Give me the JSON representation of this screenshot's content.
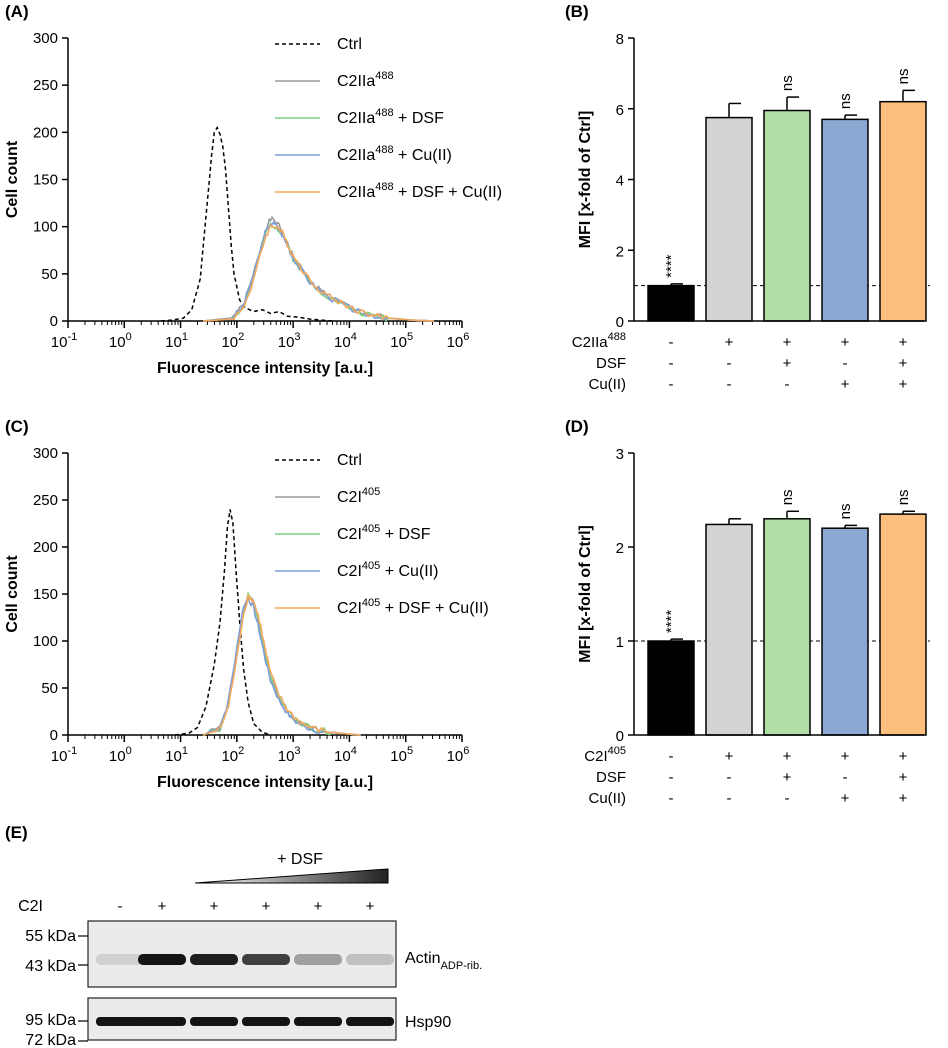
{
  "panels": {
    "A": "(A)",
    "B": "(B)",
    "C": "(C)",
    "D": "(D)",
    "E": "(E)"
  },
  "chart_data": [
    {
      "id": "A",
      "type": "line",
      "title": "",
      "xlabel": "Fluorescence intensity [a.u.]",
      "ylabel": "Cell count",
      "xscale": "log",
      "xlim_exp": [
        -1,
        6
      ],
      "ylim": [
        0,
        300
      ],
      "yticks": [
        "0",
        "50",
        "100",
        "150",
        "200",
        "250",
        "300"
      ],
      "xtick_base": "10",
      "xtick_exponents": [
        "-1",
        "0",
        "1",
        "2",
        "3",
        "4",
        "5",
        "6"
      ],
      "series": [
        {
          "key": "ctrl",
          "name": "Ctrl",
          "sup": "",
          "suffix": "",
          "color": "#000000",
          "dashed": true,
          "x": [
            0.65,
            0.85,
            1.05,
            1.2,
            1.35,
            1.45,
            1.55,
            1.6,
            1.65,
            1.7,
            1.75,
            1.8,
            1.85,
            1.9,
            1.95,
            2.05,
            2.15,
            2.3,
            2.45,
            2.6,
            2.75,
            2.9,
            3.1,
            3.3,
            3.5,
            3.7
          ],
          "y": [
            0,
            1,
            3,
            12,
            45,
            110,
            175,
            200,
            205,
            198,
            185,
            160,
            120,
            80,
            50,
            22,
            14,
            10,
            12,
            8,
            10,
            5,
            4,
            2,
            1,
            0
          ]
        },
        {
          "key": "c2",
          "name": "C2IIa",
          "sup": "488",
          "suffix": "",
          "color": "#999999",
          "dashed": false,
          "seed": 1,
          "x": [
            1.4,
            1.9,
            2.1,
            2.25,
            2.4,
            2.5,
            2.6,
            2.7,
            2.8,
            2.9,
            3.0,
            3.15,
            3.3,
            3.5,
            3.7,
            3.9,
            4.1,
            4.3,
            4.5,
            4.7,
            4.9,
            5.1,
            5.3,
            5.5
          ],
          "y": [
            0,
            3,
            15,
            40,
            72,
            95,
            108,
            105,
            95,
            82,
            68,
            55,
            42,
            32,
            24,
            18,
            12,
            8,
            5,
            3,
            2,
            1,
            0.5,
            0
          ]
        },
        {
          "key": "c2dsf",
          "name": "C2IIa",
          "sup": "488",
          "suffix": " + DSF",
          "color": "#7fd07f",
          "dashed": false,
          "seed": 2,
          "x": [
            1.4,
            1.9,
            2.1,
            2.25,
            2.4,
            2.5,
            2.6,
            2.7,
            2.8,
            2.9,
            3.0,
            3.15,
            3.3,
            3.5,
            3.7,
            3.9,
            4.1,
            4.3,
            4.5,
            4.7,
            4.9,
            5.1,
            5.3,
            5.5
          ],
          "y": [
            0,
            3,
            14,
            38,
            70,
            92,
            102,
            100,
            93,
            80,
            66,
            54,
            41,
            31,
            23,
            17,
            11,
            7,
            5,
            3,
            2,
            1,
            0.5,
            0
          ]
        },
        {
          "key": "c2cu",
          "name": "C2IIa",
          "sup": "488",
          "suffix": " + Cu(II)",
          "color": "#7b9fd8",
          "dashed": false,
          "seed": 3,
          "x": [
            1.4,
            1.9,
            2.1,
            2.25,
            2.4,
            2.5,
            2.6,
            2.7,
            2.8,
            2.9,
            3.0,
            3.15,
            3.3,
            3.5,
            3.7,
            3.9,
            4.1,
            4.3,
            4.5,
            4.7,
            4.9,
            5.1,
            5.3,
            5.5
          ],
          "y": [
            0,
            3,
            14,
            40,
            71,
            93,
            104,
            101,
            92,
            80,
            67,
            54,
            41,
            31,
            23,
            17,
            11,
            7,
            5,
            3,
            2,
            1,
            0.5,
            0
          ]
        },
        {
          "key": "c2dsfcu",
          "name": "C2IIa",
          "sup": "488",
          "suffix": " + DSF + Cu(II)",
          "color": "#f5a85a",
          "dashed": false,
          "seed": 4,
          "x": [
            1.4,
            1.9,
            2.1,
            2.25,
            2.4,
            2.5,
            2.6,
            2.7,
            2.8,
            2.9,
            3.0,
            3.15,
            3.3,
            3.5,
            3.7,
            3.9,
            4.1,
            4.3,
            4.5,
            4.7,
            4.9,
            5.1,
            5.3,
            5.5
          ],
          "y": [
            0,
            2,
            12,
            35,
            66,
            88,
            100,
            101,
            94,
            82,
            69,
            56,
            43,
            32,
            24,
            18,
            12,
            8,
            5,
            3,
            2,
            1,
            0.5,
            0
          ]
        }
      ]
    },
    {
      "id": "B",
      "type": "bar",
      "ylabel": "MFI [x-fold of Ctrl]",
      "ylim": [
        0,
        8
      ],
      "yticks": [
        "0",
        "2",
        "4",
        "6",
        "8"
      ],
      "refline": 1,
      "values": [
        1.0,
        5.75,
        5.95,
        5.7,
        6.2
      ],
      "errors": [
        0.05,
        0.4,
        0.38,
        0.12,
        0.32
      ],
      "colors": [
        "#000000",
        "#d3d3d3",
        "#b0e0a8",
        "#8aa8d2",
        "#fcbf7e"
      ],
      "significance": [
        "****",
        "",
        "ns",
        "ns",
        "ns"
      ],
      "conditions": [
        {
          "label": "C2IIa",
          "sup": "488",
          "marks": [
            "-",
            "+",
            "+",
            "+",
            "+"
          ]
        },
        {
          "label": "DSF",
          "sup": "",
          "marks": [
            "-",
            "-",
            "+",
            "-",
            "+"
          ]
        },
        {
          "label": "Cu(II)",
          "sup": "",
          "marks": [
            "-",
            "-",
            "-",
            "+",
            "+"
          ]
        }
      ]
    },
    {
      "id": "C",
      "type": "line",
      "xlabel": "Fluorescence intensity [a.u.]",
      "ylabel": "Cell count",
      "xscale": "log",
      "xlim_exp": [
        -1,
        6
      ],
      "ylim": [
        0,
        300
      ],
      "yticks": [
        "0",
        "50",
        "100",
        "150",
        "200",
        "250",
        "300"
      ],
      "xtick_base": "10",
      "xtick_exponents": [
        "-1",
        "0",
        "1",
        "2",
        "3",
        "4",
        "5",
        "6"
      ],
      "series": [
        {
          "key": "ctrl",
          "name": "Ctrl",
          "sup": "",
          "suffix": "",
          "color": "#000000",
          "dashed": true,
          "x": [
            0.9,
            1.15,
            1.3,
            1.45,
            1.6,
            1.7,
            1.78,
            1.83,
            1.88,
            1.93,
            1.98,
            2.05,
            2.12,
            2.2,
            2.3,
            2.45,
            2.6
          ],
          "y": [
            0,
            2,
            8,
            30,
            75,
            120,
            175,
            220,
            240,
            225,
            180,
            120,
            70,
            35,
            12,
            3,
            0
          ]
        },
        {
          "key": "c2",
          "name": "C2I",
          "sup": "405",
          "suffix": "",
          "color": "#999999",
          "dashed": false,
          "seed": 5,
          "x": [
            1.4,
            1.7,
            1.85,
            2.0,
            2.1,
            2.2,
            2.3,
            2.4,
            2.5,
            2.6,
            2.75,
            2.9,
            3.05,
            3.2,
            3.4,
            3.6,
            3.8,
            4.0,
            4.2
          ],
          "y": [
            0,
            8,
            35,
            90,
            130,
            150,
            140,
            115,
            85,
            60,
            38,
            24,
            15,
            10,
            6,
            4,
            2,
            1,
            0
          ]
        },
        {
          "key": "c2dsf",
          "name": "C2I",
          "sup": "405",
          "suffix": " + DSF",
          "color": "#7fd07f",
          "dashed": false,
          "seed": 6,
          "x": [
            1.4,
            1.7,
            1.85,
            2.0,
            2.1,
            2.2,
            2.3,
            2.4,
            2.5,
            2.6,
            2.75,
            2.9,
            3.05,
            3.2,
            3.4,
            3.6,
            3.8,
            4.0,
            4.2
          ],
          "y": [
            0,
            7,
            32,
            86,
            126,
            148,
            140,
            118,
            88,
            62,
            40,
            26,
            16,
            11,
            6,
            4,
            2,
            1,
            0
          ]
        },
        {
          "key": "c2cu",
          "name": "C2I",
          "sup": "405",
          "suffix": " + Cu(II)",
          "color": "#7b9fd8",
          "dashed": false,
          "seed": 7,
          "x": [
            1.4,
            1.7,
            1.85,
            2.0,
            2.1,
            2.2,
            2.3,
            2.4,
            2.5,
            2.6,
            2.75,
            2.9,
            3.05,
            3.2,
            3.4,
            3.6,
            3.8,
            4.0,
            4.2
          ],
          "y": [
            0,
            8,
            36,
            92,
            132,
            146,
            135,
            110,
            82,
            58,
            37,
            23,
            14,
            9,
            5,
            3,
            2,
            1,
            0
          ]
        },
        {
          "key": "c2dsfcu",
          "name": "C2I",
          "sup": "405",
          "suffix": " + DSF + Cu(II)",
          "color": "#f5a85a",
          "dashed": false,
          "seed": 8,
          "x": [
            1.4,
            1.7,
            1.85,
            2.0,
            2.1,
            2.2,
            2.3,
            2.4,
            2.5,
            2.6,
            2.75,
            2.9,
            3.05,
            3.2,
            3.4,
            3.6,
            3.8,
            4.0,
            4.2
          ],
          "y": [
            0,
            6,
            30,
            82,
            124,
            148,
            142,
            122,
            92,
            65,
            42,
            27,
            17,
            11,
            6,
            4,
            2,
            1,
            0
          ]
        }
      ]
    },
    {
      "id": "D",
      "type": "bar",
      "ylabel": "MFI [x-fold of Ctrl]",
      "ylim": [
        0,
        3
      ],
      "yticks": [
        "0",
        "1",
        "2",
        "3"
      ],
      "refline": 1,
      "values": [
        1.0,
        2.24,
        2.3,
        2.2,
        2.35
      ],
      "errors": [
        0.02,
        0.06,
        0.08,
        0.03,
        0.03
      ],
      "colors": [
        "#000000",
        "#d3d3d3",
        "#b0e0a8",
        "#8aa8d2",
        "#fcbf7e"
      ],
      "significance": [
        "****",
        "",
        "ns",
        "ns",
        "ns"
      ],
      "conditions": [
        {
          "label": "C2I",
          "sup": "405",
          "marks": [
            "-",
            "+",
            "+",
            "+",
            "+"
          ]
        },
        {
          "label": "DSF",
          "sup": "",
          "marks": [
            "-",
            "-",
            "+",
            "-",
            "+"
          ]
        },
        {
          "label": "Cu(II)",
          "sup": "",
          "marks": [
            "-",
            "-",
            "-",
            "+",
            "+"
          ]
        }
      ]
    }
  ],
  "blot": {
    "dsf_label": "+ DSF",
    "c2i_label": "C2I",
    "c2i_marks": [
      "-",
      "+",
      "+",
      "+",
      "+",
      "+"
    ],
    "upper": {
      "markers": [
        "55 kDa",
        "43 kDa"
      ],
      "band_label_main": "Actin",
      "band_label_sub": "ADP-rib.",
      "intensities": [
        0.12,
        1.0,
        0.95,
        0.8,
        0.35,
        0.2
      ]
    },
    "lower": {
      "markers": [
        "95 kDa",
        "72 kDa"
      ],
      "band_label": "Hsp90",
      "intensities": [
        1.0,
        1.0,
        1.0,
        1.0,
        1.0,
        1.0
      ]
    }
  }
}
